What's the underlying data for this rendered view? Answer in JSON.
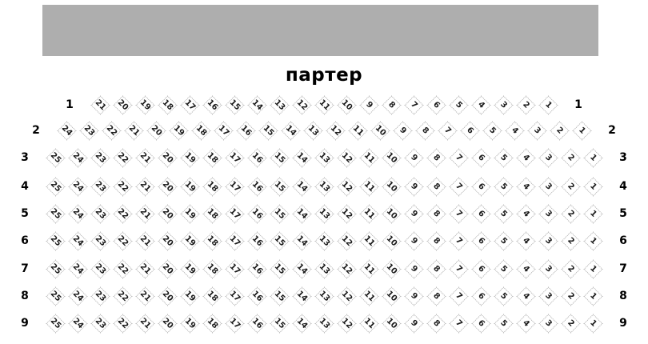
{
  "title": "партер",
  "colors": {
    "stage": "#aeaeae",
    "seat_border": "#ababab",
    "seat_fill": "#ffffff",
    "seat_number": "#1c1c1c"
  },
  "rows": [
    {
      "label": "1",
      "seats": [
        21,
        20,
        19,
        18,
        17,
        16,
        15,
        14,
        13,
        12,
        11,
        10,
        9,
        8,
        7,
        6,
        5,
        4,
        3,
        2,
        1
      ]
    },
    {
      "label": "2",
      "seats": [
        24,
        23,
        22,
        21,
        20,
        19,
        18,
        17,
        16,
        15,
        14,
        13,
        12,
        11,
        10,
        9,
        8,
        7,
        6,
        5,
        4,
        3,
        2,
        1
      ]
    },
    {
      "label": "3",
      "seats": [
        25,
        24,
        23,
        22,
        21,
        20,
        19,
        18,
        17,
        16,
        15,
        14,
        13,
        12,
        11,
        10,
        9,
        8,
        7,
        6,
        5,
        4,
        3,
        2,
        1
      ]
    },
    {
      "label": "4",
      "seats": [
        25,
        24,
        23,
        22,
        21,
        20,
        19,
        18,
        17,
        16,
        15,
        14,
        13,
        12,
        11,
        10,
        9,
        8,
        7,
        6,
        5,
        4,
        3,
        2,
        1
      ]
    },
    {
      "label": "5",
      "seats": [
        25,
        24,
        23,
        22,
        21,
        20,
        19,
        18,
        17,
        16,
        15,
        14,
        13,
        12,
        11,
        10,
        9,
        8,
        7,
        6,
        5,
        4,
        3,
        2,
        1
      ]
    },
    {
      "label": "6",
      "seats": [
        25,
        24,
        23,
        22,
        21,
        20,
        19,
        18,
        17,
        16,
        15,
        14,
        13,
        12,
        11,
        10,
        9,
        8,
        7,
        6,
        5,
        4,
        3,
        2,
        1
      ]
    },
    {
      "label": "7",
      "seats": [
        25,
        24,
        23,
        22,
        21,
        20,
        19,
        18,
        17,
        16,
        15,
        14,
        13,
        12,
        11,
        10,
        9,
        8,
        7,
        6,
        5,
        4,
        3,
        2,
        1
      ]
    },
    {
      "label": "8",
      "seats": [
        25,
        24,
        23,
        22,
        21,
        20,
        19,
        18,
        17,
        16,
        15,
        14,
        13,
        12,
        11,
        10,
        9,
        8,
        7,
        6,
        5,
        4,
        3,
        2,
        1
      ]
    },
    {
      "label": "9",
      "seats": [
        25,
        24,
        23,
        22,
        21,
        20,
        19,
        18,
        17,
        16,
        15,
        14,
        13,
        12,
        11,
        10,
        9,
        8,
        7,
        6,
        5,
        4,
        3,
        2,
        1
      ]
    }
  ]
}
